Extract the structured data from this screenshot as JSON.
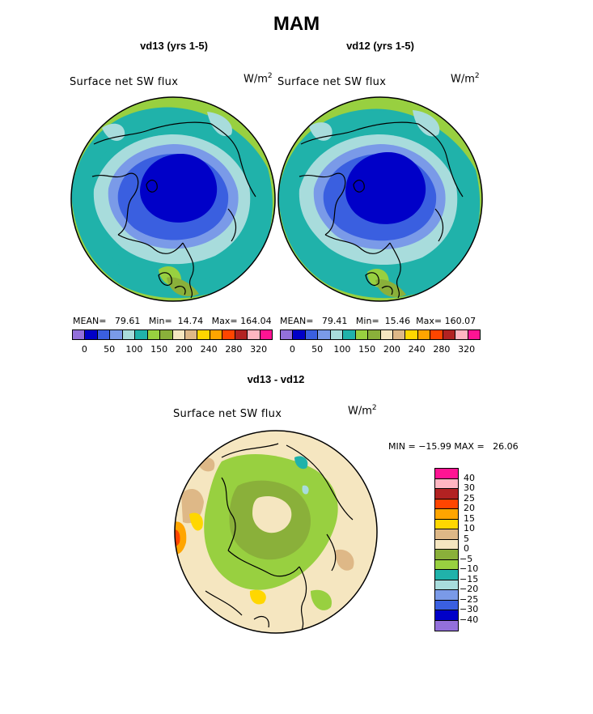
{
  "page": {
    "title": "MAM"
  },
  "left_panel": {
    "heading": "vd13 (yrs 1-5)",
    "field": "Surface net SW flux",
    "units_base": "W/m",
    "units_exp": "2",
    "stats": {
      "mean_label": "MEAN=",
      "mean": "79.61",
      "min_label": "Min=",
      "min": "14.74",
      "max_label": "Max=",
      "max": "164.04"
    }
  },
  "right_panel": {
    "heading": "vd12 (yrs 1-5)",
    "field": "Surface net SW flux",
    "units_base": "W/m",
    "units_exp": "2",
    "stats": {
      "mean_label": "MEAN=",
      "mean": "79.41",
      "min_label": "Min=",
      "min": "15.46",
      "max_label": "Max=",
      "max": "160.07"
    }
  },
  "field_colorbar": {
    "colors": [
      "#9370db",
      "#0000c8",
      "#3a5fe0",
      "#7a9ae8",
      "#a8dcdc",
      "#20b2aa",
      "#98d040",
      "#8ab03a",
      "#f5e6c0",
      "#deb887",
      "#ffd700",
      "#ffa500",
      "#ff4500",
      "#b22222",
      "#ffb6c1",
      "#ff1493"
    ],
    "tick_labels": [
      "0",
      "50",
      "100",
      "150",
      "200",
      "240",
      "280",
      "320"
    ]
  },
  "diff_panel": {
    "heading": "vd13 - vd12",
    "field": "Surface net SW flux",
    "units_base": "W/m",
    "units_exp": "2",
    "stats": {
      "min_label": "MIN = ",
      "min": "−15.99",
      "max_label": "MAX = ",
      "max": "26.06"
    }
  },
  "diff_colorbar": {
    "colors": [
      "#ff1493",
      "#ffb6c1",
      "#b22222",
      "#ff4500",
      "#ffa500",
      "#ffd700",
      "#deb887",
      "#f5e6c0",
      "#8ab03a",
      "#98d040",
      "#20b2aa",
      "#a8dcdc",
      "#7a9ae8",
      "#3a5fe0",
      "#0000c8",
      "#9370db"
    ],
    "tick_labels": [
      "40",
      "30",
      "25",
      "20",
      "15",
      "10",
      "5",
      "0",
      "−5",
      "−10",
      "−15",
      "−20",
      "−25",
      "−30",
      "−40"
    ]
  }
}
